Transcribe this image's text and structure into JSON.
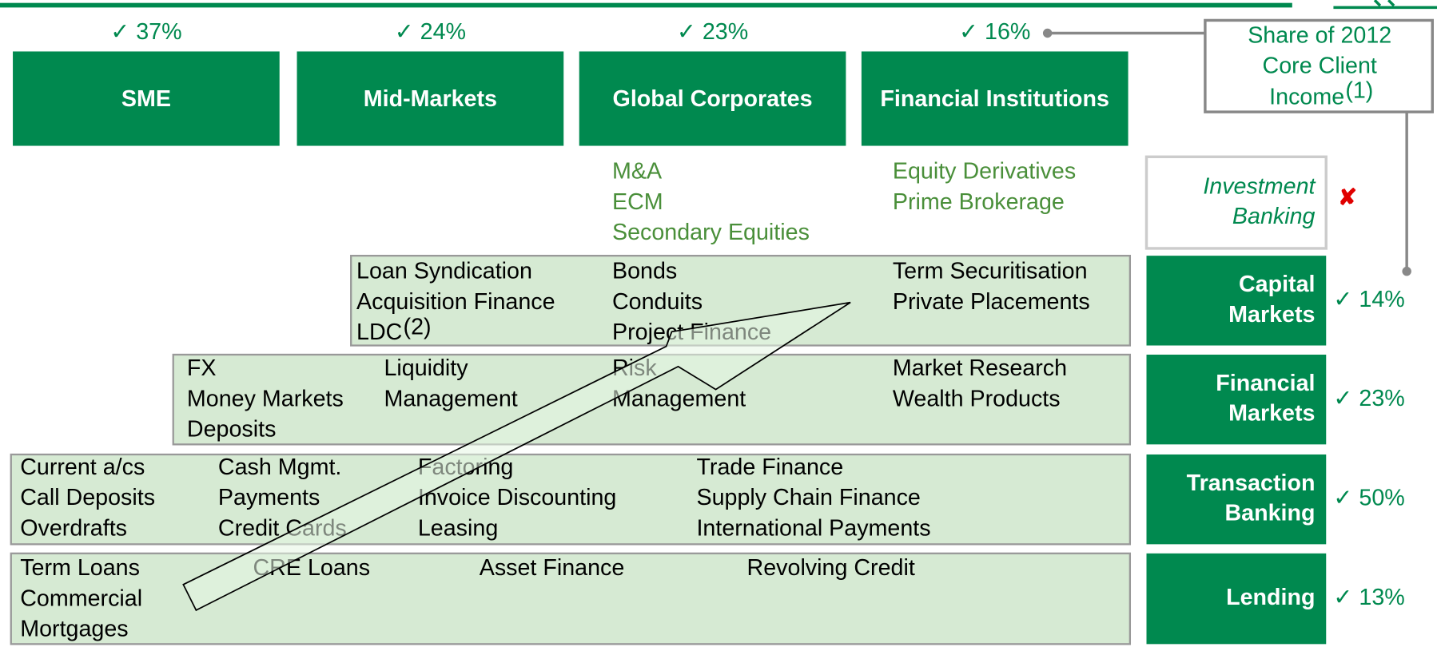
{
  "segments": [
    {
      "share": "✓ 37%",
      "label": "SME"
    },
    {
      "share": "✓ 24%",
      "label": "Mid-Markets"
    },
    {
      "share": "✓ 23%",
      "label": "Global Corporates"
    },
    {
      "share": "✓ 16%",
      "label": "Financial Institutions"
    }
  ],
  "legend_box": {
    "lines": [
      "Share of 2012",
      "Core Client",
      "Income"
    ],
    "footnote_ref": "(1)"
  },
  "rows": [
    {
      "label": [
        "Investment",
        "Banking"
      ],
      "status": "✘",
      "columns": [
        [
          "M&A",
          "ECM",
          "Secondary Equities"
        ],
        [
          "Equity Derivatives",
          "Prime Brokerage"
        ]
      ]
    },
    {
      "label": [
        "Capital",
        "Markets"
      ],
      "status": "✓ 14%",
      "footnote_ref": "(2)",
      "columns": [
        [
          "Loan Syndication",
          "Acquisition Finance",
          "LDC"
        ],
        [
          "Bonds",
          "Conduits",
          "Project Finance"
        ],
        [
          "Term Securitisation",
          "Private Placements"
        ]
      ]
    },
    {
      "label": [
        "Financial",
        "Markets"
      ],
      "status": "✓ 23%",
      "columns": [
        [
          "FX",
          "Money Markets",
          "Deposits"
        ],
        [
          "Liquidity",
          "Management"
        ],
        [
          "Risk",
          "Management"
        ],
        [
          "Market Research",
          "Wealth Products"
        ]
      ]
    },
    {
      "label": [
        "Transaction",
        "Banking"
      ],
      "status": "✓ 50%",
      "columns": [
        [
          "Current a/cs",
          "Call Deposits",
          "Overdrafts"
        ],
        [
          "Cash Mgmt.",
          "Payments",
          "Credit Cards"
        ],
        [
          "Factoring",
          "Invoice Discounting",
          "Leasing"
        ],
        [
          "Trade Finance",
          "Supply Chain Finance",
          "International Payments"
        ]
      ]
    },
    {
      "label": [
        "Lending"
      ],
      "status": "✓ 13%",
      "columns": [
        [
          "Term Loans",
          "Commercial",
          "Mortgages"
        ],
        [
          "CRE Loans"
        ],
        [
          "Asset Finance"
        ],
        [
          "Revolving Credit"
        ]
      ]
    }
  ]
}
